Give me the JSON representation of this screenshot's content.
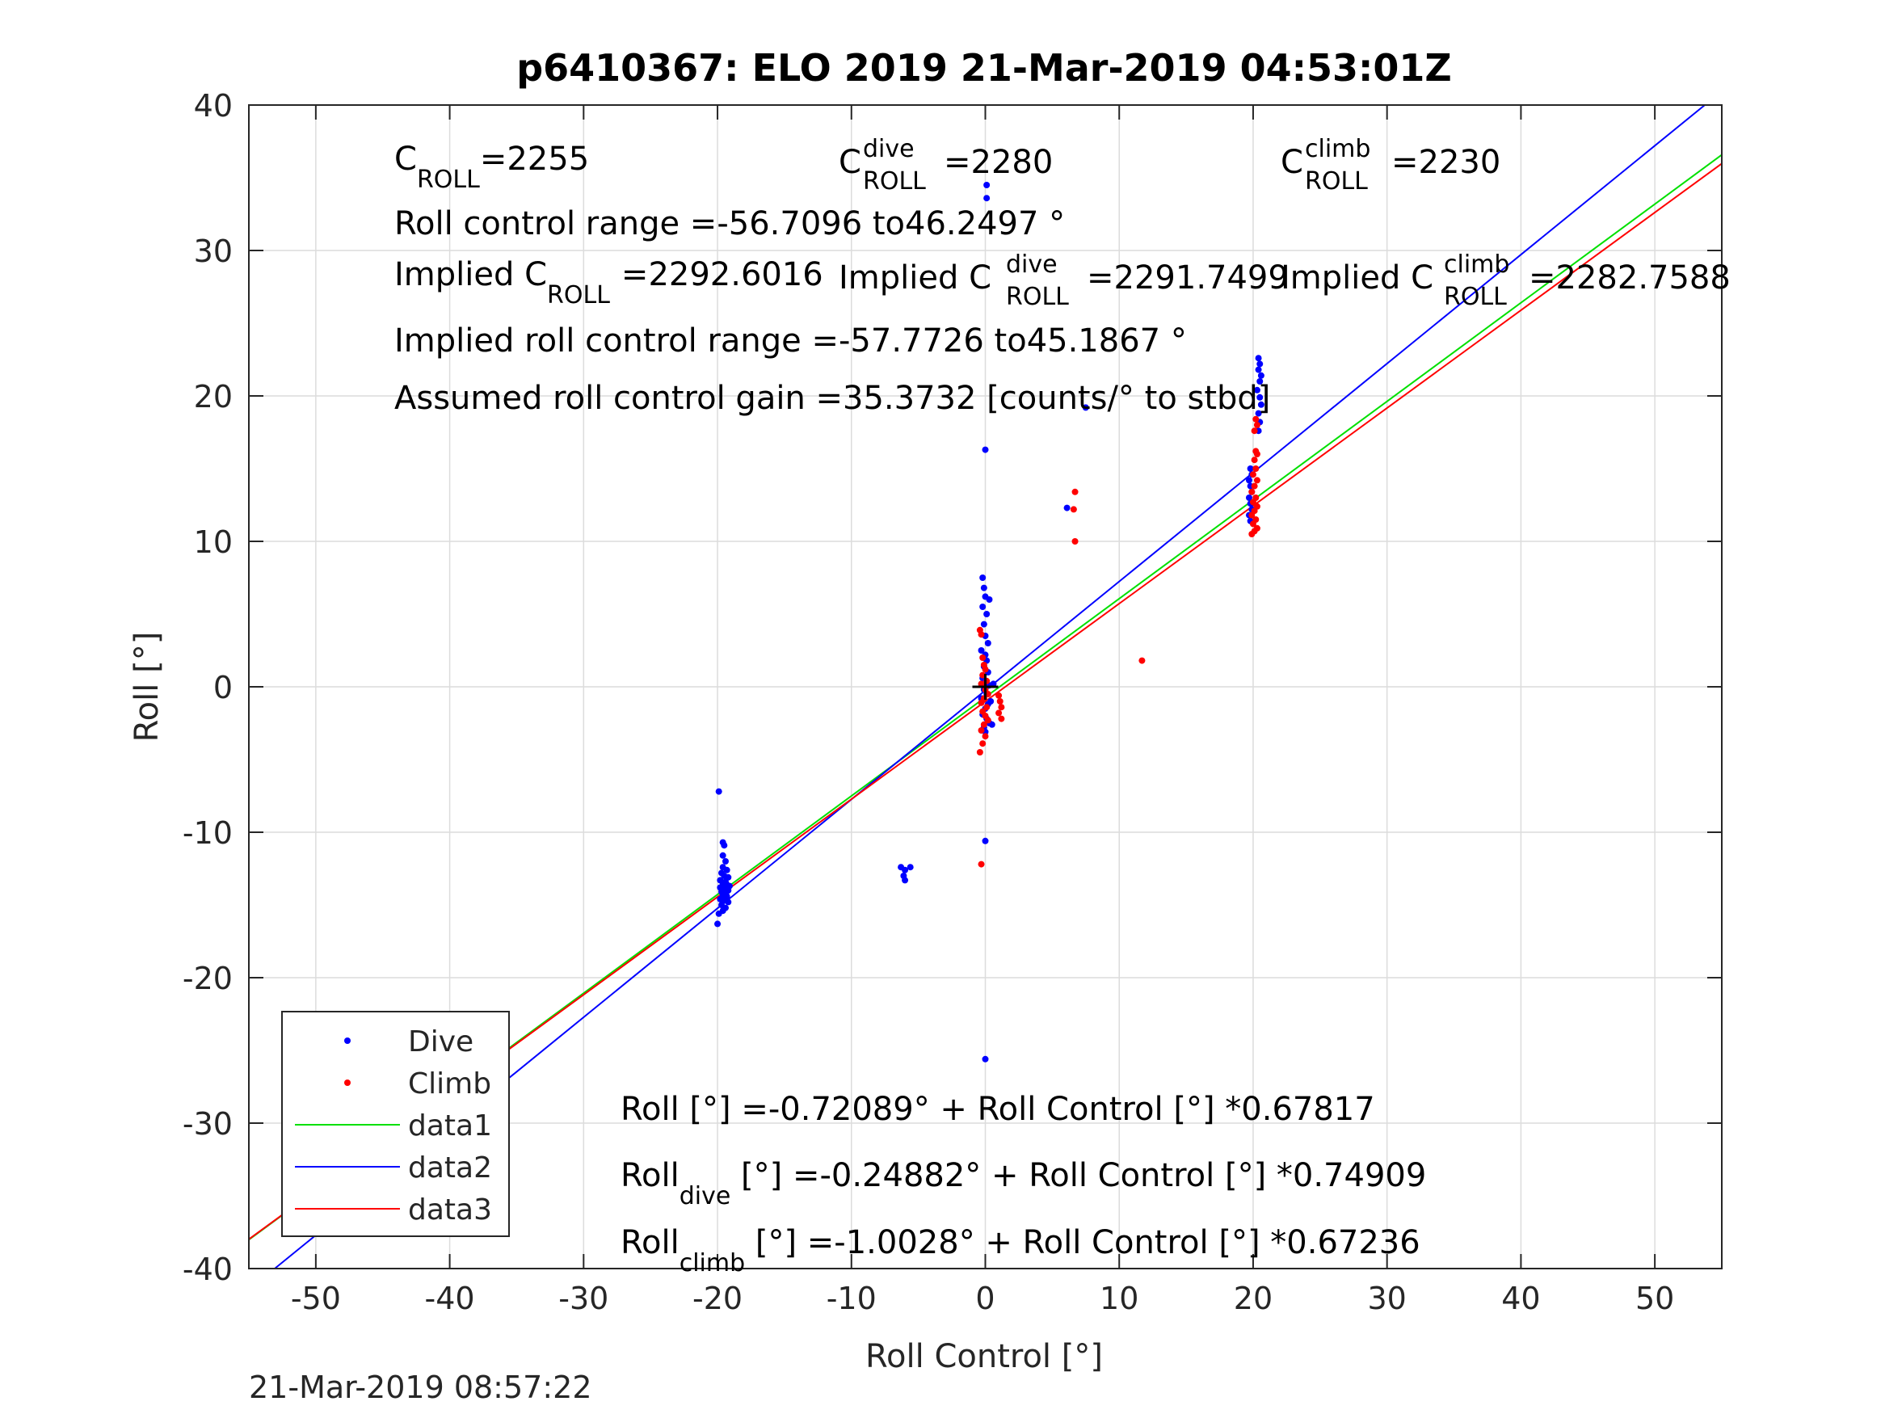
{
  "chart_data": {
    "type": "scatter",
    "title": "p6410367: ELO 2019 21-Mar-2019 04:53:01Z",
    "xlabel": "Roll Control [°]",
    "ylabel": "Roll [°]",
    "xlim": [
      -55,
      55
    ],
    "ylim": [
      -40,
      40
    ],
    "xticks": [
      -50,
      -40,
      -30,
      -20,
      -10,
      0,
      10,
      20,
      30,
      40,
      50
    ],
    "yticks": [
      -40,
      -30,
      -20,
      -10,
      0,
      10,
      20,
      30,
      40
    ],
    "grid": true,
    "legend_position": "bottom-left",
    "timestamp": "21-Mar-2019 08:57:22",
    "colors": {
      "dive": "#0000ff",
      "climb": "#ff0000",
      "data1": "#00e000",
      "data2": "#0000ff",
      "data3": "#ff0000",
      "cross": "#000000"
    },
    "series": [
      {
        "name": "Dive",
        "kind": "points",
        "color": "#0000ff",
        "points": [
          [
            -19.9,
            -7.2
          ],
          [
            -19.6,
            -10.7
          ],
          [
            -19.5,
            -10.9
          ],
          [
            -19.6,
            -11.6
          ],
          [
            -19.4,
            -12.0
          ],
          [
            -19.6,
            -12.4
          ],
          [
            -19.3,
            -12.6
          ],
          [
            -19.7,
            -12.8
          ],
          [
            -19.5,
            -13.0
          ],
          [
            -19.2,
            -13.1
          ],
          [
            -19.8,
            -13.3
          ],
          [
            -19.4,
            -13.4
          ],
          [
            -19.6,
            -13.5
          ],
          [
            -19.3,
            -13.6
          ],
          [
            -19.1,
            -13.7
          ],
          [
            -19.8,
            -13.8
          ],
          [
            -19.5,
            -13.9
          ],
          [
            -19.2,
            -14.0
          ],
          [
            -19.7,
            -14.1
          ],
          [
            -19.4,
            -14.2
          ],
          [
            -19.6,
            -14.3
          ],
          [
            -19.3,
            -14.4
          ],
          [
            -19.8,
            -14.6
          ],
          [
            -19.5,
            -14.7
          ],
          [
            -19.2,
            -14.8
          ],
          [
            -19.7,
            -15.0
          ],
          [
            -19.4,
            -15.2
          ],
          [
            -19.6,
            -15.4
          ],
          [
            -19.9,
            -15.6
          ],
          [
            -20.0,
            -16.3
          ],
          [
            -6.3,
            -12.4
          ],
          [
            -6.0,
            -12.6
          ],
          [
            -5.6,
            -12.4
          ],
          [
            -6.1,
            -13.0
          ],
          [
            -6.0,
            -13.3
          ],
          [
            -0.2,
            7.5
          ],
          [
            -0.1,
            6.8
          ],
          [
            0.0,
            6.2
          ],
          [
            0.3,
            6.0
          ],
          [
            -0.2,
            5.5
          ],
          [
            0.1,
            5.0
          ],
          [
            -0.1,
            4.3
          ],
          [
            0.0,
            3.5
          ],
          [
            0.2,
            3.0
          ],
          [
            -0.3,
            2.5
          ],
          [
            0.0,
            2.2
          ],
          [
            0.1,
            1.8
          ],
          [
            -0.1,
            1.4
          ],
          [
            0.2,
            1.0
          ],
          [
            -0.2,
            0.6
          ],
          [
            0.0,
            0.3
          ],
          [
            0.3,
            0.1
          ],
          [
            -0.1,
            -0.2
          ],
          [
            0.1,
            -0.5
          ],
          [
            -0.3,
            -0.8
          ],
          [
            0.2,
            -1.2
          ],
          [
            0.0,
            -1.5
          ],
          [
            -0.2,
            -1.9
          ],
          [
            0.1,
            -2.2
          ],
          [
            0.3,
            -2.5
          ],
          [
            -0.1,
            -2.8
          ],
          [
            0.0,
            -3.1
          ],
          [
            0.5,
            -2.6
          ],
          [
            0.6,
            0.2
          ],
          [
            0.4,
            -1.0
          ],
          [
            0.0,
            16.3
          ],
          [
            0.1,
            34.5
          ],
          [
            0.1,
            33.6
          ],
          [
            0.0,
            -10.6
          ],
          [
            0.0,
            -25.6
          ],
          [
            6.1,
            12.3
          ],
          [
            7.5,
            19.2
          ],
          [
            20.4,
            22.6
          ],
          [
            20.5,
            22.2
          ],
          [
            20.4,
            21.8
          ],
          [
            20.6,
            21.4
          ],
          [
            20.5,
            21.0
          ],
          [
            20.3,
            20.4
          ],
          [
            20.5,
            19.9
          ],
          [
            20.6,
            19.4
          ],
          [
            20.4,
            18.8
          ],
          [
            20.5,
            18.2
          ],
          [
            20.4,
            17.6
          ],
          [
            19.8,
            15.0
          ],
          [
            19.9,
            14.6
          ],
          [
            19.7,
            14.2
          ],
          [
            19.8,
            13.8
          ],
          [
            19.9,
            13.4
          ],
          [
            19.7,
            13.0
          ],
          [
            19.8,
            12.6
          ],
          [
            19.9,
            12.2
          ],
          [
            19.7,
            11.8
          ],
          [
            19.8,
            11.4
          ]
        ]
      },
      {
        "name": "Climb",
        "kind": "points",
        "color": "#ff0000",
        "points": [
          [
            -0.4,
            3.9
          ],
          [
            -0.3,
            3.6
          ],
          [
            -0.2,
            2.0
          ],
          [
            -0.1,
            1.5
          ],
          [
            0.0,
            1.2
          ],
          [
            -0.2,
            0.8
          ],
          [
            0.1,
            0.4
          ],
          [
            -0.3,
            0.2
          ],
          [
            0.0,
            -0.2
          ],
          [
            0.2,
            -0.5
          ],
          [
            -0.1,
            -0.8
          ],
          [
            -0.3,
            -1.1
          ],
          [
            0.1,
            -1.4
          ],
          [
            -0.2,
            -1.7
          ],
          [
            0.0,
            -2.0
          ],
          [
            0.2,
            -2.3
          ],
          [
            -0.1,
            -2.6
          ],
          [
            -0.3,
            -3.0
          ],
          [
            0.0,
            -3.4
          ],
          [
            -0.2,
            -3.9
          ],
          [
            -0.4,
            -4.5
          ],
          [
            -0.3,
            -12.2
          ],
          [
            1.0,
            -0.6
          ],
          [
            1.1,
            -1.0
          ],
          [
            1.2,
            -1.4
          ],
          [
            1.0,
            -1.8
          ],
          [
            1.2,
            -2.2
          ],
          [
            6.7,
            13.4
          ],
          [
            6.6,
            12.2
          ],
          [
            6.7,
            10.0
          ],
          [
            11.7,
            1.8
          ],
          [
            20.2,
            18.4
          ],
          [
            20.3,
            18.0
          ],
          [
            20.1,
            17.6
          ],
          [
            20.2,
            16.2
          ],
          [
            20.3,
            16.0
          ],
          [
            20.1,
            15.6
          ],
          [
            20.2,
            15.0
          ],
          [
            20.0,
            14.6
          ],
          [
            20.3,
            14.2
          ],
          [
            20.1,
            13.8
          ],
          [
            19.9,
            13.4
          ],
          [
            20.2,
            13.0
          ],
          [
            20.0,
            12.7
          ],
          [
            20.3,
            12.4
          ],
          [
            20.1,
            12.1
          ],
          [
            19.9,
            11.8
          ],
          [
            20.2,
            11.5
          ],
          [
            20.0,
            11.2
          ],
          [
            20.3,
            10.9
          ],
          [
            20.1,
            10.7
          ],
          [
            19.9,
            10.5
          ]
        ]
      },
      {
        "name": "data1",
        "kind": "line",
        "color": "#00e000",
        "intercept": -0.72089,
        "slope": 0.67817
      },
      {
        "name": "data2",
        "kind": "line",
        "color": "#0000ff",
        "intercept": -0.24882,
        "slope": 0.74909
      },
      {
        "name": "data3",
        "kind": "line",
        "color": "#ff0000",
        "intercept": -1.0028,
        "slope": 0.67236
      }
    ],
    "annotations": {
      "croll_base": "C",
      "croll_sub": "ROLL",
      "croll_value": "=2255",
      "cdive_base": "C",
      "cdive_sup": "dive",
      "cdive_sub": "ROLL",
      "cdive_value": "=2280",
      "cclimb_base": "C",
      "cclimb_sup": "climb",
      "cclimb_sub": "ROLL",
      "cclimb_value": "=2230",
      "range_text": "Roll control range =-56.7096 to46.2497 °",
      "implied_base": "Implied C",
      "implied_sub": "ROLL",
      "implied_value": "=2292.6016",
      "implied_dive_base": "Implied C",
      "implied_dive_sup": "dive",
      "implied_dive_sub": "ROLL",
      "implied_dive_value": "=2291.7499",
      "implied_climb_base": "Implied C",
      "implied_climb_sup": "climb",
      "implied_climb_sub": "ROLL",
      "implied_climb_value": "=2282.7588",
      "implied_range_text": "Implied roll control range =-57.7726 to45.1867 °",
      "gain_text": "Assumed roll control gain =35.3732 [counts/° to stbd]",
      "eq1_text": "Roll [°] =-0.72089° + Roll Control [°] *0.67817",
      "eq2_base": "Roll",
      "eq2_sub": "dive",
      "eq2_rest": " [°] =-0.24882° + Roll Control [°] *0.74909",
      "eq3_base": "Roll",
      "eq3_sub": "climb",
      "eq3_rest": " [°] =-1.0028° + Roll Control [°] *0.67236"
    }
  }
}
